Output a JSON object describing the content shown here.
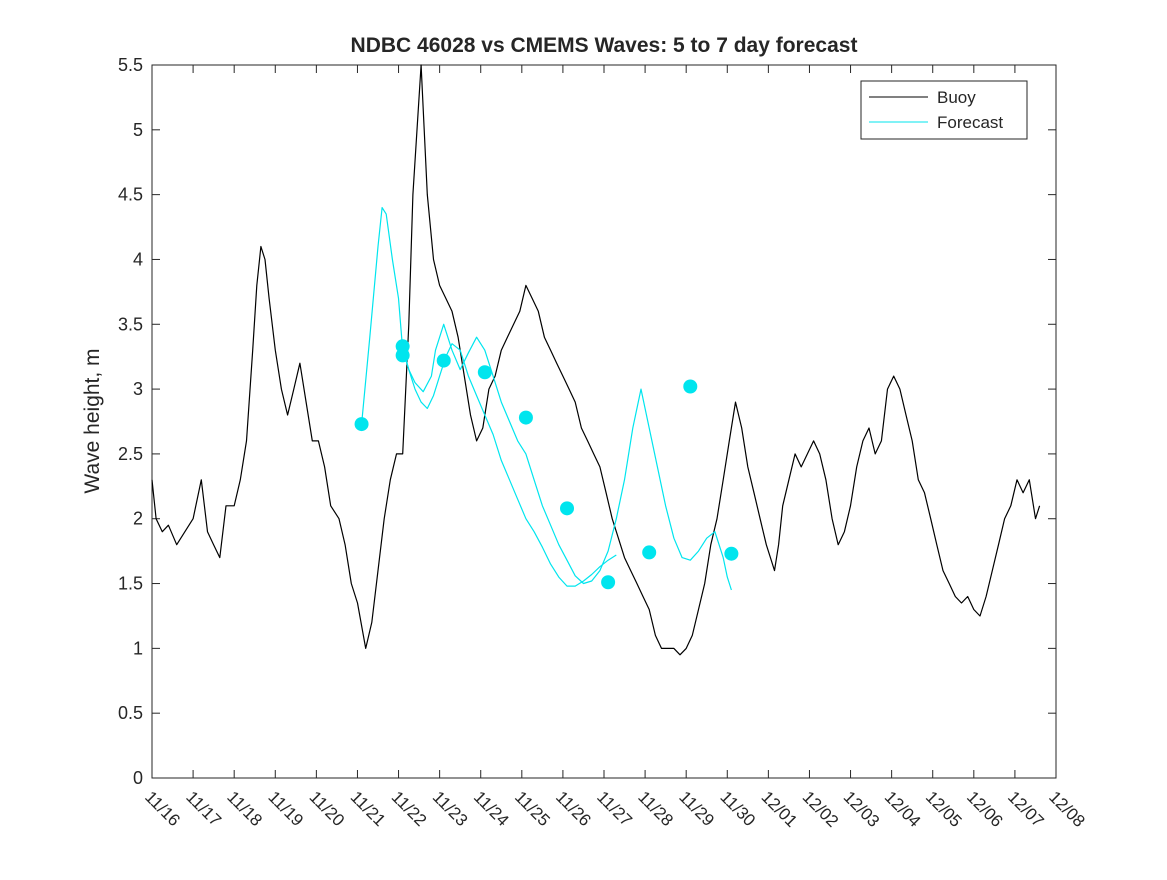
{
  "chart_data": {
    "type": "line",
    "title": "NDBC 46028 vs CMEMS Waves: 5 to 7 day forecast",
    "xlabel": "",
    "ylabel": "Wave height, m",
    "xlim": [
      0,
      22
    ],
    "ylim": [
      0,
      5.5
    ],
    "x_tick_positions": [
      0,
      1,
      2,
      3,
      4,
      5,
      6,
      7,
      8,
      9,
      10,
      11,
      12,
      13,
      14,
      15,
      16,
      17,
      18,
      19,
      20,
      21,
      22
    ],
    "x_tick_labels": [
      "11/16",
      "11/17",
      "11/18",
      "11/19",
      "11/20",
      "11/21",
      "11/22",
      "11/23",
      "11/24",
      "11/25",
      "11/26",
      "11/27",
      "11/28",
      "11/29",
      "11/30",
      "12/01",
      "12/02",
      "12/03",
      "12/04",
      "12/05",
      "12/06",
      "12/07",
      "12/08"
    ],
    "y_ticks": [
      0,
      0.5,
      1,
      1.5,
      2,
      2.5,
      3,
      3.5,
      4,
      4.5,
      5,
      5.5
    ],
    "y_tick_labels": [
      "0",
      "0.5",
      "1",
      "1.5",
      "2",
      "2.5",
      "3",
      "3.5",
      "4",
      "4.5",
      "5",
      "5.5"
    ],
    "legend": {
      "location": "top-right",
      "entries": [
        {
          "label": "Buoy",
          "color": "#000000"
        },
        {
          "label": "Forecast",
          "color": "#00e5ee"
        }
      ]
    },
    "series": [
      {
        "name": "Buoy",
        "color": "#000000",
        "points": [
          [
            0,
            2.3
          ],
          [
            0.1,
            2.0
          ],
          [
            0.25,
            1.9
          ],
          [
            0.4,
            1.95
          ],
          [
            0.6,
            1.8
          ],
          [
            0.8,
            1.9
          ],
          [
            1.0,
            2.0
          ],
          [
            1.2,
            2.3
          ],
          [
            1.35,
            1.9
          ],
          [
            1.5,
            1.8
          ],
          [
            1.65,
            1.7
          ],
          [
            1.8,
            2.1
          ],
          [
            2.0,
            2.1
          ],
          [
            2.15,
            2.3
          ],
          [
            2.3,
            2.6
          ],
          [
            2.45,
            3.3
          ],
          [
            2.55,
            3.8
          ],
          [
            2.65,
            4.1
          ],
          [
            2.75,
            4.0
          ],
          [
            2.85,
            3.7
          ],
          [
            3.0,
            3.3
          ],
          [
            3.15,
            3.0
          ],
          [
            3.3,
            2.8
          ],
          [
            3.45,
            3.0
          ],
          [
            3.6,
            3.2
          ],
          [
            3.75,
            2.9
          ],
          [
            3.9,
            2.6
          ],
          [
            4.05,
            2.6
          ],
          [
            4.2,
            2.4
          ],
          [
            4.35,
            2.1
          ],
          [
            4.55,
            2.0
          ],
          [
            4.7,
            1.8
          ],
          [
            4.85,
            1.5
          ],
          [
            5.0,
            1.35
          ],
          [
            5.2,
            1.0
          ],
          [
            5.35,
            1.2
          ],
          [
            5.5,
            1.6
          ],
          [
            5.65,
            2.0
          ],
          [
            5.8,
            2.3
          ],
          [
            5.95,
            2.5
          ],
          [
            6.1,
            2.5
          ],
          [
            6.25,
            3.5
          ],
          [
            6.35,
            4.5
          ],
          [
            6.45,
            5.0
          ],
          [
            6.55,
            5.5
          ],
          [
            6.7,
            4.5
          ],
          [
            6.85,
            4.0
          ],
          [
            7.0,
            3.8
          ],
          [
            7.15,
            3.7
          ],
          [
            7.3,
            3.6
          ],
          [
            7.45,
            3.4
          ],
          [
            7.6,
            3.1
          ],
          [
            7.75,
            2.8
          ],
          [
            7.9,
            2.6
          ],
          [
            8.05,
            2.7
          ],
          [
            8.2,
            3.0
          ],
          [
            8.35,
            3.1
          ],
          [
            8.5,
            3.3
          ],
          [
            8.65,
            3.4
          ],
          [
            8.8,
            3.5
          ],
          [
            8.95,
            3.6
          ],
          [
            9.1,
            3.8
          ],
          [
            9.25,
            3.7
          ],
          [
            9.4,
            3.6
          ],
          [
            9.55,
            3.4
          ],
          [
            9.7,
            3.3
          ],
          [
            9.85,
            3.2
          ],
          [
            10.0,
            3.1
          ],
          [
            10.15,
            3.0
          ],
          [
            10.3,
            2.9
          ],
          [
            10.45,
            2.7
          ],
          [
            10.6,
            2.6
          ],
          [
            10.75,
            2.5
          ],
          [
            10.9,
            2.4
          ],
          [
            11.05,
            2.2
          ],
          [
            11.2,
            2.0
          ],
          [
            11.35,
            1.85
          ],
          [
            11.5,
            1.7
          ],
          [
            11.65,
            1.6
          ],
          [
            11.8,
            1.5
          ],
          [
            11.95,
            1.4
          ],
          [
            12.1,
            1.3
          ],
          [
            12.25,
            1.1
          ],
          [
            12.4,
            1.0
          ],
          [
            12.55,
            1.0
          ],
          [
            12.7,
            1.0
          ],
          [
            12.85,
            0.95
          ],
          [
            13.0,
            1.0
          ],
          [
            13.15,
            1.1
          ],
          [
            13.3,
            1.3
          ],
          [
            13.45,
            1.5
          ],
          [
            13.6,
            1.8
          ],
          [
            13.75,
            2.0
          ],
          [
            13.9,
            2.3
          ],
          [
            14.05,
            2.6
          ],
          [
            14.2,
            2.9
          ],
          [
            14.35,
            2.7
          ],
          [
            14.5,
            2.4
          ],
          [
            14.65,
            2.2
          ],
          [
            14.8,
            2.0
          ],
          [
            14.95,
            1.8
          ],
          [
            15.05,
            1.7
          ],
          [
            15.15,
            1.6
          ],
          [
            15.25,
            1.8
          ],
          [
            15.35,
            2.1
          ],
          [
            15.5,
            2.3
          ],
          [
            15.65,
            2.5
          ],
          [
            15.8,
            2.4
          ],
          [
            15.95,
            2.5
          ],
          [
            16.1,
            2.6
          ],
          [
            16.25,
            2.5
          ],
          [
            16.4,
            2.3
          ],
          [
            16.55,
            2.0
          ],
          [
            16.7,
            1.8
          ],
          [
            16.85,
            1.9
          ],
          [
            17.0,
            2.1
          ],
          [
            17.15,
            2.4
          ],
          [
            17.3,
            2.6
          ],
          [
            17.45,
            2.7
          ],
          [
            17.6,
            2.5
          ],
          [
            17.75,
            2.6
          ],
          [
            17.9,
            3.0
          ],
          [
            18.05,
            3.1
          ],
          [
            18.2,
            3.0
          ],
          [
            18.35,
            2.8
          ],
          [
            18.5,
            2.6
          ],
          [
            18.65,
            2.3
          ],
          [
            18.8,
            2.2
          ],
          [
            18.95,
            2.0
          ],
          [
            19.1,
            1.8
          ],
          [
            19.25,
            1.6
          ],
          [
            19.4,
            1.5
          ],
          [
            19.55,
            1.4
          ],
          [
            19.7,
            1.35
          ],
          [
            19.85,
            1.4
          ],
          [
            20.0,
            1.3
          ],
          [
            20.15,
            1.25
          ],
          [
            20.3,
            1.4
          ],
          [
            20.45,
            1.6
          ],
          [
            20.6,
            1.8
          ],
          [
            20.75,
            2.0
          ],
          [
            20.9,
            2.1
          ],
          [
            21.05,
            2.3
          ],
          [
            21.2,
            2.2
          ],
          [
            21.35,
            2.3
          ],
          [
            21.5,
            2.0
          ],
          [
            21.6,
            2.1
          ]
        ]
      },
      {
        "name": "Forecast",
        "color": "#00e5ee",
        "points": [
          [
            5.1,
            2.73
          ],
          [
            5.3,
            3.4
          ],
          [
            5.5,
            4.1
          ],
          [
            5.6,
            4.4
          ],
          [
            5.7,
            4.35
          ],
          [
            5.85,
            4.0
          ],
          [
            6.0,
            3.7
          ],
          [
            6.1,
            3.3
          ],
          [
            6.25,
            3.15
          ],
          [
            6.4,
            3.05
          ],
          [
            6.6,
            2.98
          ],
          [
            6.8,
            3.1
          ],
          [
            6.9,
            3.3
          ],
          [
            7.1,
            3.5
          ],
          [
            7.3,
            3.3
          ],
          [
            7.5,
            3.15
          ],
          [
            7.7,
            3.28
          ],
          [
            7.9,
            3.4
          ],
          [
            8.1,
            3.3
          ],
          [
            8.3,
            3.1
          ],
          [
            8.5,
            2.9
          ],
          [
            8.7,
            2.75
          ],
          [
            8.9,
            2.6
          ],
          [
            9.1,
            2.5
          ],
          [
            9.3,
            2.3
          ],
          [
            9.5,
            2.1
          ],
          [
            9.7,
            1.95
          ],
          [
            9.9,
            1.8
          ],
          [
            10.1,
            1.68
          ],
          [
            10.3,
            1.56
          ],
          [
            10.5,
            1.5
          ],
          [
            10.7,
            1.52
          ],
          [
            10.9,
            1.6
          ],
          [
            11.1,
            1.75
          ],
          [
            11.3,
            2.0
          ],
          [
            11.5,
            2.3
          ],
          [
            11.7,
            2.7
          ],
          [
            11.9,
            3.0
          ],
          [
            12.1,
            2.7
          ],
          [
            12.3,
            2.4
          ],
          [
            12.5,
            2.1
          ],
          [
            12.7,
            1.85
          ],
          [
            12.9,
            1.7
          ],
          [
            13.1,
            1.68
          ],
          [
            13.3,
            1.75
          ],
          [
            13.5,
            1.85
          ],
          [
            13.7,
            1.9
          ],
          [
            13.9,
            1.7
          ],
          [
            14.0,
            1.55
          ],
          [
            14.1,
            1.45
          ]
        ]
      },
      {
        "name": "Forecast",
        "color": "#00e5ee",
        "points": [
          [
            6.1,
            3.33
          ],
          [
            6.25,
            3.15
          ],
          [
            6.4,
            3.0
          ],
          [
            6.55,
            2.9
          ],
          [
            6.7,
            2.85
          ],
          [
            6.85,
            2.95
          ],
          [
            7.0,
            3.1
          ],
          [
            7.15,
            3.25
          ],
          [
            7.3,
            3.35
          ],
          [
            7.5,
            3.3
          ],
          [
            7.7,
            3.1
          ],
          [
            7.9,
            2.95
          ],
          [
            8.1,
            2.8
          ],
          [
            8.3,
            2.65
          ],
          [
            8.5,
            2.45
          ],
          [
            8.7,
            2.3
          ],
          [
            8.9,
            2.15
          ],
          [
            9.1,
            2.0
          ],
          [
            9.3,
            1.9
          ],
          [
            9.5,
            1.78
          ],
          [
            9.7,
            1.65
          ],
          [
            9.9,
            1.55
          ],
          [
            10.1,
            1.48
          ],
          [
            10.3,
            1.48
          ],
          [
            10.5,
            1.52
          ],
          [
            10.7,
            1.57
          ],
          [
            10.9,
            1.63
          ],
          [
            11.1,
            1.68
          ],
          [
            11.3,
            1.72
          ]
        ]
      }
    ],
    "markers": {
      "name": "Forecast",
      "color": "#00e5ee",
      "points": [
        [
          5.1,
          2.73
        ],
        [
          6.1,
          3.33
        ],
        [
          6.1,
          3.26
        ],
        [
          7.1,
          3.22
        ],
        [
          8.1,
          3.13
        ],
        [
          9.1,
          2.78
        ],
        [
          10.1,
          2.08
        ],
        [
          11.1,
          1.51
        ],
        [
          12.1,
          1.74
        ],
        [
          13.1,
          3.02
        ],
        [
          14.1,
          1.73
        ]
      ]
    }
  }
}
